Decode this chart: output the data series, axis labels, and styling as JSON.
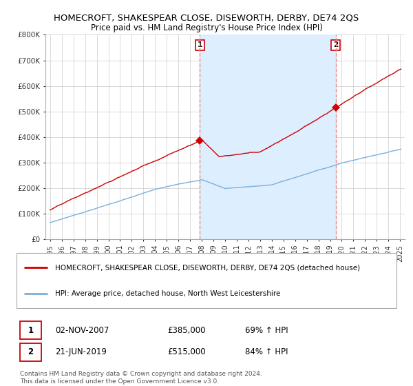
{
  "title": "HOMECROFT, SHAKESPEAR CLOSE, DISEWORTH, DERBY, DE74 2QS",
  "subtitle": "Price paid vs. HM Land Registry's House Price Index (HPI)",
  "ylim": [
    0,
    800000
  ],
  "yticks": [
    0,
    100000,
    200000,
    300000,
    400000,
    500000,
    600000,
    700000,
    800000
  ],
  "ytick_labels": [
    "£0",
    "£100K",
    "£200K",
    "£300K",
    "£400K",
    "£500K",
    "£600K",
    "£700K",
    "£800K"
  ],
  "sale1_date": 2007.836,
  "sale1_price": 385000,
  "sale2_date": 2019.472,
  "sale2_price": 515000,
  "legend_line1": "HOMECROFT, SHAKESPEAR CLOSE, DISEWORTH, DERBY, DE74 2QS (detached house)",
  "legend_line2": "HPI: Average price, detached house, North West Leicestershire",
  "table_row1": [
    "1",
    "02-NOV-2007",
    "£385,000",
    "69% ↑ HPI"
  ],
  "table_row2": [
    "2",
    "21-JUN-2019",
    "£515,000",
    "84% ↑ HPI"
  ],
  "footnote": "Contains HM Land Registry data © Crown copyright and database right 2024.\nThis data is licensed under the Open Government Licence v3.0.",
  "line_color_red": "#cc0000",
  "line_color_blue": "#7aafdc",
  "fill_color": "#ddeeff",
  "vline_color": "#ee8888",
  "background_color": "#ffffff",
  "grid_color": "#cccccc",
  "title_fontsize": 9.5,
  "subtitle_fontsize": 8.5,
  "tick_fontsize": 7.5,
  "legend_fontsize": 7.5,
  "table_fontsize": 8.5,
  "footnote_fontsize": 6.5,
  "xlim_left": 1994.6,
  "xlim_right": 2025.4
}
